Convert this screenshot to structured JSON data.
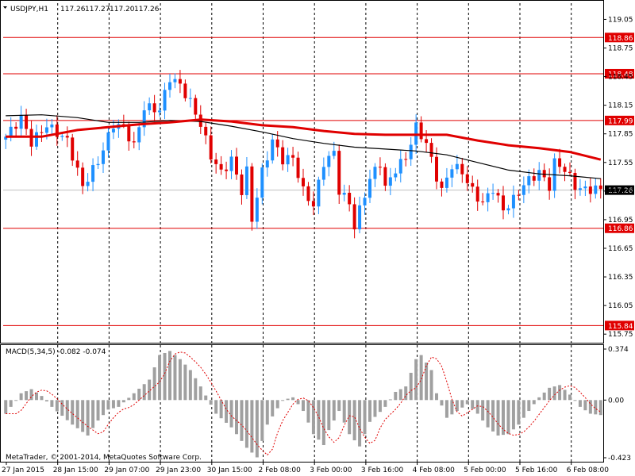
{
  "chart_data": {
    "type": "candlestick",
    "symbol_header": "USDJPY,H1",
    "ohlc_readout": [
      "117.26",
      "117.27",
      "117.20",
      "117.26"
    ],
    "price_ylim": [
      115.66,
      119.22
    ],
    "price_ticks": [
      "119.05",
      "118.75",
      "118.45",
      "118.15",
      "117.85",
      "117.55",
      "117.25",
      "116.95",
      "116.65",
      "116.35",
      "116.05",
      "115.75"
    ],
    "x_tick_labels": [
      "27 Jan 2015",
      "28 Jan 15:00",
      "29 Jan 07:00",
      "29 Jan 23:00",
      "30 Jan 15:00",
      "2 Feb 08:00",
      "3 Feb 00:00",
      "3 Feb 16:00",
      "4 Feb 08:00",
      "5 Feb 00:00",
      "5 Feb 16:00",
      "6 Feb 08:00"
    ],
    "horizontal_levels": [
      {
        "label": "118.86",
        "value": 118.86,
        "color": "#e00000"
      },
      {
        "label": "118.48",
        "value": 118.48,
        "color": "#e00000"
      },
      {
        "label": "117.99",
        "value": 117.99,
        "color": "#e00000"
      },
      {
        "label": "116.86",
        "value": 116.86,
        "color": "#e00000"
      },
      {
        "label": "115.84",
        "value": 115.84,
        "color": "#e00000"
      }
    ],
    "current_price": {
      "label": "117.26",
      "value": 117.26,
      "color": "#000000"
    },
    "bull_color": "#1e90ff",
    "bear_color": "#e00000",
    "ma_fast_color": "#e00000",
    "ma_slow_color": "#000000",
    "close_path": [
      [
        0,
        117.82
      ],
      [
        3,
        118.02
      ],
      [
        5,
        117.76
      ],
      [
        8,
        117.94
      ],
      [
        12,
        117.78
      ],
      [
        15,
        117.3
      ],
      [
        18,
        117.56
      ],
      [
        21,
        117.95
      ],
      [
        23,
        117.92
      ],
      [
        25,
        117.72
      ],
      [
        27,
        118.13
      ],
      [
        30,
        118.1
      ],
      [
        32,
        118.44
      ],
      [
        34,
        118.36
      ],
      [
        36,
        118.18
      ],
      [
        38,
        117.95
      ],
      [
        40,
        117.62
      ],
      [
        42,
        117.44
      ],
      [
        44,
        117.58
      ],
      [
        46,
        117.25
      ],
      [
        47,
        117.46
      ],
      [
        48,
        116.95
      ],
      [
        50,
        117.45
      ],
      [
        52,
        117.78
      ],
      [
        54,
        117.58
      ],
      [
        56,
        117.6
      ],
      [
        58,
        117.25
      ],
      [
        60,
        117.1
      ],
      [
        62,
        117.55
      ],
      [
        64,
        117.65
      ],
      [
        65,
        117.26
      ],
      [
        67,
        117.12
      ],
      [
        68,
        116.88
      ],
      [
        69,
        117.05
      ],
      [
        71,
        117.38
      ],
      [
        73,
        117.55
      ],
      [
        74,
        117.28
      ],
      [
        76,
        117.48
      ],
      [
        78,
        117.6
      ],
      [
        80,
        117.92
      ],
      [
        82,
        117.75
      ],
      [
        84,
        117.4
      ],
      [
        85,
        117.25
      ],
      [
        87,
        117.52
      ],
      [
        89,
        117.45
      ],
      [
        91,
        117.25
      ],
      [
        93,
        117.12
      ],
      [
        95,
        117.28
      ],
      [
        97,
        117.05
      ],
      [
        99,
        117.16
      ],
      [
        101,
        117.32
      ],
      [
        104,
        117.45
      ],
      [
        106,
        117.3
      ],
      [
        107,
        117.55
      ],
      [
        109,
        117.48
      ],
      [
        111,
        117.3
      ],
      [
        113,
        117.26
      ],
      [
        115,
        117.28
      ],
      [
        116,
        117.26
      ]
    ],
    "ma_fast": [
      [
        0,
        117.82
      ],
      [
        7,
        117.82
      ],
      [
        14,
        117.89
      ],
      [
        20,
        117.92
      ],
      [
        26,
        117.95
      ],
      [
        32,
        117.97
      ],
      [
        38,
        118.0
      ],
      [
        44,
        117.98
      ],
      [
        50,
        117.94
      ],
      [
        56,
        117.92
      ],
      [
        62,
        117.88
      ],
      [
        68,
        117.85
      ],
      [
        74,
        117.84
      ],
      [
        80,
        117.84
      ],
      [
        86,
        117.84
      ],
      [
        92,
        117.78
      ],
      [
        98,
        117.73
      ],
      [
        104,
        117.7
      ],
      [
        110,
        117.66
      ],
      [
        116,
        117.58
      ]
    ],
    "ma_slow": [
      [
        0,
        118.04
      ],
      [
        7,
        118.05
      ],
      [
        14,
        118.02
      ],
      [
        20,
        117.97
      ],
      [
        26,
        117.97
      ],
      [
        32,
        117.99
      ],
      [
        38,
        117.98
      ],
      [
        44,
        117.93
      ],
      [
        50,
        117.87
      ],
      [
        56,
        117.8
      ],
      [
        62,
        117.75
      ],
      [
        68,
        117.71
      ],
      [
        74,
        117.69
      ],
      [
        80,
        117.67
      ],
      [
        86,
        117.63
      ],
      [
        92,
        117.55
      ],
      [
        98,
        117.47
      ],
      [
        104,
        117.43
      ],
      [
        110,
        117.41
      ],
      [
        116,
        117.38
      ]
    ],
    "macd": {
      "header": "MACD(5,34,5) -0.082 -0.074",
      "ylim": [
        -0.423,
        0.374
      ],
      "ticks": [
        "0.374",
        "0.00",
        "-0.423"
      ],
      "histogram_path": [
        [
          0,
          -0.1
        ],
        [
          3,
          0.05
        ],
        [
          5,
          0.08
        ],
        [
          7,
          0.03
        ],
        [
          9,
          -0.05
        ],
        [
          13,
          -0.18
        ],
        [
          16,
          -0.26
        ],
        [
          18,
          -0.15
        ],
        [
          20,
          -0.07
        ],
        [
          22,
          -0.05
        ],
        [
          25,
          0.05
        ],
        [
          28,
          0.15
        ],
        [
          30,
          0.33
        ],
        [
          32,
          0.36
        ],
        [
          34,
          0.3
        ],
        [
          36,
          0.22
        ],
        [
          38,
          0.1
        ],
        [
          41,
          -0.1
        ],
        [
          44,
          -0.2
        ],
        [
          47,
          -0.35
        ],
        [
          49,
          -0.42
        ],
        [
          51,
          -0.18
        ],
        [
          54,
          0.0
        ],
        [
          56,
          0.02
        ],
        [
          58,
          -0.08
        ],
        [
          60,
          -0.25
        ],
        [
          62,
          -0.33
        ],
        [
          63,
          -0.22
        ],
        [
          65,
          -0.08
        ],
        [
          67,
          -0.25
        ],
        [
          69,
          -0.34
        ],
        [
          71,
          -0.16
        ],
        [
          74,
          -0.05
        ],
        [
          76,
          0.06
        ],
        [
          78,
          0.1
        ],
        [
          80,
          0.3
        ],
        [
          81,
          0.33
        ],
        [
          83,
          0.22
        ],
        [
          84,
          0.05
        ],
        [
          86,
          -0.13
        ],
        [
          88,
          -0.08
        ],
        [
          90,
          -0.03
        ],
        [
          92,
          -0.1
        ],
        [
          94,
          -0.2
        ],
        [
          96,
          -0.26
        ],
        [
          98,
          -0.25
        ],
        [
          100,
          -0.18
        ],
        [
          102,
          -0.08
        ],
        [
          104,
          0.02
        ],
        [
          106,
          0.09
        ],
        [
          108,
          0.11
        ],
        [
          110,
          0.04
        ],
        [
          112,
          -0.05
        ],
        [
          114,
          -0.1
        ],
        [
          116,
          -0.11
        ]
      ]
    }
  },
  "footer_text": "MetaTrader, © 2001-2014, MetaQuotes Software Corp."
}
